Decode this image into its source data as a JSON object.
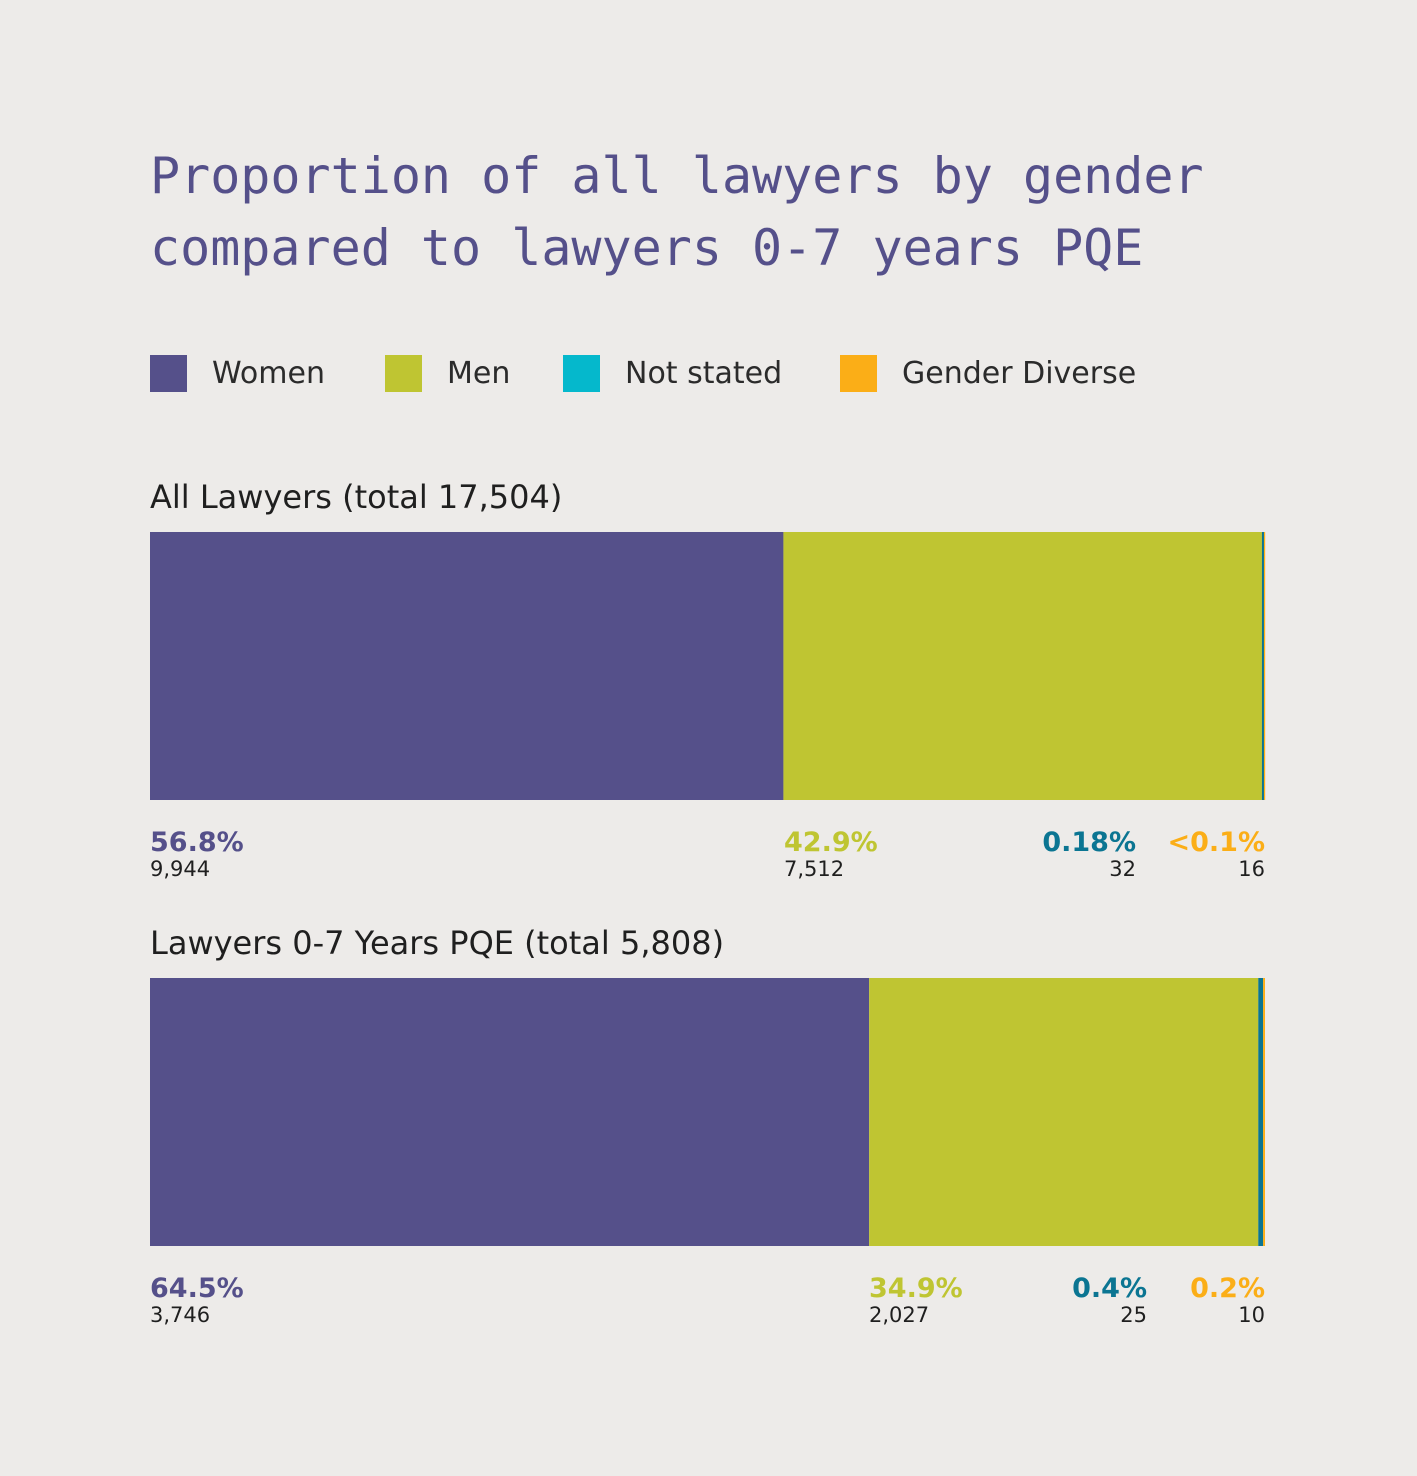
{
  "title_lines": [
    "Proportion of all lawyers by gender",
    "compared to lawyers 0-7 years PQE"
  ],
  "colors": {
    "women": "#55508a",
    "men": "#bfc532",
    "not_stated": "#0b7592",
    "not_stated_legend": "#05b8cc",
    "gender_diverse": "#fbae17"
  },
  "legend": [
    {
      "label": "Women",
      "color": "#55508a",
      "icon": "square-swatch"
    },
    {
      "label": "Men",
      "color": "#bfc532",
      "icon": "square-swatch"
    },
    {
      "label": "Not stated",
      "color": "#05b8cc",
      "icon": "square-swatch"
    },
    {
      "label": "Gender Diverse",
      "color": "#fbae17",
      "icon": "square-swatch"
    }
  ],
  "chart_data": [
    {
      "type": "bar",
      "orientation": "horizontal-stacked-100",
      "title": "All Lawyers (total 17,504)",
      "total": 17504,
      "segments": [
        {
          "name": "Women",
          "value": 9944,
          "percent_label": "56.8%",
          "count_label": "9,944",
          "color": "#55508a"
        },
        {
          "name": "Men",
          "value": 7512,
          "percent_label": "42.9%",
          "count_label": "7,512",
          "color": "#bfc532"
        },
        {
          "name": "Not stated",
          "value": 32,
          "percent_label": "0.18%",
          "count_label": "32",
          "color": "#0b7592"
        },
        {
          "name": "Gender Diverse",
          "value": 16,
          "percent_label": "<0.1%",
          "count_label": "16",
          "color": "#fbae17"
        }
      ]
    },
    {
      "type": "bar",
      "orientation": "horizontal-stacked-100",
      "title": "Lawyers 0-7 Years PQE (total 5,808)",
      "total": 5808,
      "segments": [
        {
          "name": "Women",
          "value": 3746,
          "percent_label": "64.5%",
          "count_label": "3,746",
          "color": "#55508a"
        },
        {
          "name": "Men",
          "value": 2027,
          "percent_label": "34.9%",
          "count_label": "2,027",
          "color": "#bfc532"
        },
        {
          "name": "Not stated",
          "value": 25,
          "percent_label": "0.4%",
          "count_label": "25",
          "color": "#0b7592"
        },
        {
          "name": "Gender Diverse",
          "value": 10,
          "percent_label": "0.2%",
          "count_label": "10",
          "color": "#fbae17"
        }
      ]
    }
  ]
}
